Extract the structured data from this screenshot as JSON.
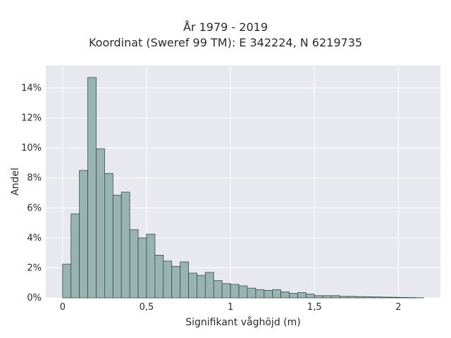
{
  "chart_data": {
    "type": "bar",
    "title": "År 1979 - 2019",
    "subtitle": "Koordinat (Sweref 99 TM): E 342224, N 6219735",
    "xlabel": "Signifikant våghöjd (m)",
    "ylabel": "Andel",
    "xlim": [
      -0.1,
      2.25
    ],
    "ylim": [
      0,
      0.155
    ],
    "x_ticks": [
      0,
      0.5,
      1,
      1.5,
      2
    ],
    "x_tick_labels": [
      "0",
      "0,5",
      "1",
      "1,5",
      "2"
    ],
    "y_ticks": [
      0,
      0.02,
      0.04,
      0.06,
      0.08,
      0.1,
      0.12,
      0.14
    ],
    "y_tick_labels": [
      "0%",
      "2%",
      "4%",
      "6%",
      "8%",
      "10%",
      "12%",
      "14%"
    ],
    "grid": true,
    "bin_width": 0.05,
    "bin_starts": [
      0,
      0.05,
      0.1,
      0.15,
      0.2,
      0.25,
      0.3,
      0.35,
      0.4,
      0.45,
      0.5,
      0.55,
      0.6,
      0.65,
      0.7,
      0.75,
      0.8,
      0.85,
      0.9,
      0.95,
      1.0,
      1.05,
      1.1,
      1.15,
      1.2,
      1.25,
      1.3,
      1.35,
      1.4,
      1.45,
      1.5,
      1.55,
      1.6,
      1.65,
      1.7,
      1.75,
      1.8,
      1.85,
      1.9,
      1.95,
      2.0,
      2.05,
      2.1
    ],
    "values": [
      0.0225,
      0.056,
      0.085,
      0.147,
      0.0995,
      0.083,
      0.0685,
      0.0705,
      0.0455,
      0.04,
      0.0425,
      0.0285,
      0.0245,
      0.021,
      0.024,
      0.0165,
      0.015,
      0.017,
      0.0115,
      0.0095,
      0.009,
      0.008,
      0.0065,
      0.0055,
      0.005,
      0.0055,
      0.004,
      0.003,
      0.0035,
      0.0025,
      0.0015,
      0.0015,
      0.0015,
      0.001,
      0.001,
      0.0008,
      0.0007,
      0.0006,
      0.0005,
      0.0004,
      0.0003,
      0.0002,
      0.0001
    ],
    "colors": {
      "bar_fill": "#97b4b2",
      "bar_stroke": "#3b4a49",
      "plot_background": "#e8e8f0",
      "grid": "#ffffff"
    }
  }
}
